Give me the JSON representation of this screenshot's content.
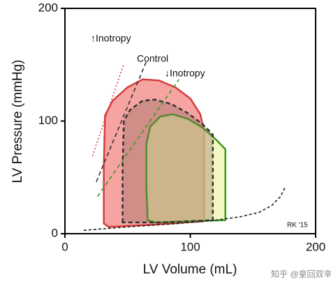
{
  "chart_data": {
    "type": "pv-loop",
    "x_label": "LV Volume (mL)",
    "y_label": "LV Pressure (mmHg)",
    "xlim": [
      0,
      200
    ],
    "ylim": [
      0,
      200
    ],
    "xticks": [
      0,
      100,
      200
    ],
    "yticks": [
      0,
      100,
      200
    ],
    "series": [
      {
        "name": "↑Inotropy",
        "color": "#d63c3c",
        "fill": "#f5a4a2",
        "dash": "dotted",
        "loop_x": [
          31,
          31,
          32,
          38,
          50,
          62,
          75,
          88,
          100,
          108,
          111,
          111,
          111,
          70,
          35,
          31
        ],
        "loop_y": [
          9,
          60,
          105,
          118,
          130,
          137,
          136,
          130,
          120,
          106,
          91,
          40,
          11,
          8,
          6,
          9
        ],
        "espvr_x": [
          22,
          47
        ],
        "espvr_y": [
          69,
          151
        ]
      },
      {
        "name": "Control",
        "color": "#333333",
        "fill": "#8a6a5a",
        "dash": "dashed",
        "loop_x": [
          46,
          46,
          47,
          52,
          62,
          72,
          85,
          98,
          110,
          118,
          118,
          118,
          80,
          46
        ],
        "loop_y": [
          10,
          60,
          100,
          110,
          118,
          119,
          115,
          107,
          97,
          88,
          40,
          12,
          10,
          10
        ],
        "espvr_x": [
          25,
          65
        ],
        "espvr_y": [
          46,
          153
        ]
      },
      {
        "name": "↓Inotropy",
        "color": "#3a9a1e",
        "fill": "#eef3a8",
        "dash": "dashed",
        "loop_x": [
          66,
          65,
          65,
          68,
          76,
          86,
          98,
          110,
          121,
          128,
          128,
          128,
          100,
          72,
          66
        ],
        "loop_y": [
          12,
          40,
          80,
          95,
          104,
          106,
          102,
          94,
          83,
          75,
          40,
          12,
          11,
          10,
          12
        ],
        "espvr_x": [
          26,
          91
        ],
        "espvr_y": [
          33,
          137
        ]
      }
    ],
    "edpvr": {
      "color": "#222222",
      "x": [
        15,
        50,
        90,
        120,
        140,
        155,
        165,
        172,
        176
      ],
      "y": [
        3,
        6,
        9,
        12,
        15,
        19,
        25,
        33,
        42
      ]
    },
    "credit": "RK '15",
    "watermark": "知乎 @皇回双辛"
  }
}
